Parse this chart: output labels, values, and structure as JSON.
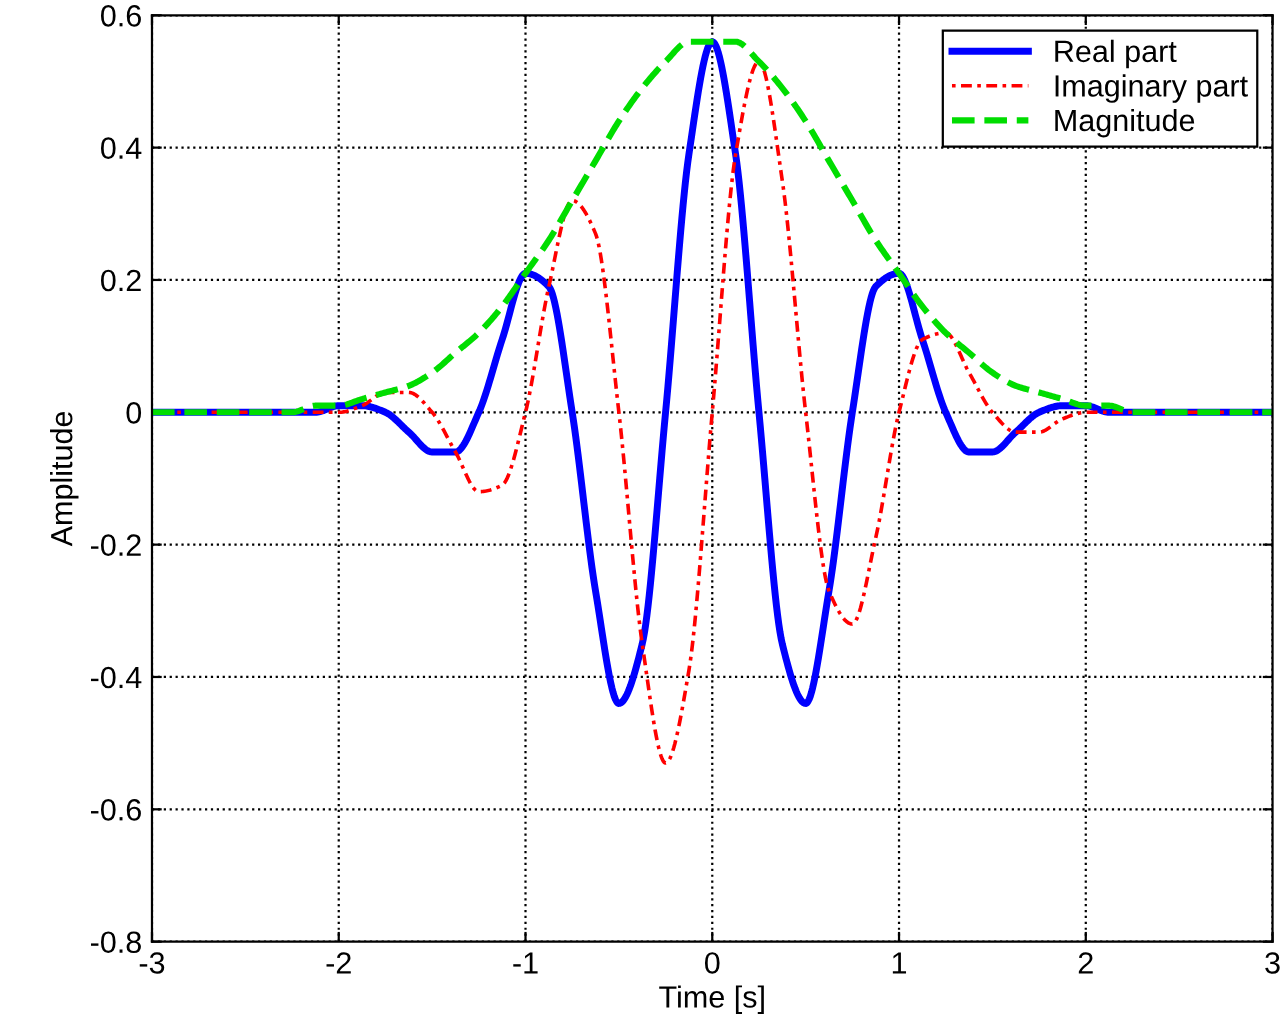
{
  "chart_data": {
    "type": "line",
    "xlabel": "Time [s]",
    "ylabel": "Amplitude",
    "x": [
      -3,
      -2.875,
      -2.75,
      -2.625,
      -2.5,
      -2.375,
      -2.25,
      -2.125,
      -2,
      -1.875,
      -1.75,
      -1.625,
      -1.5,
      -1.375,
      -1.25,
      -1.125,
      -1,
      -0.875,
      -0.75,
      -0.625,
      -0.5,
      -0.375,
      -0.25,
      -0.125,
      0,
      0.125,
      0.25,
      0.375,
      0.5,
      0.625,
      0.75,
      0.875,
      1,
      1.125,
      1.25,
      1.375,
      1.5,
      1.625,
      1.75,
      1.875,
      2,
      2.125,
      2.25,
      2.375,
      2.5,
      2.625,
      2.75,
      2.875,
      3
    ],
    "series": [
      {
        "name": "Real part",
        "color": "#0000ff",
        "line_style": "solid",
        "values": [
          0,
          0,
          0,
          0,
          0,
          0,
          0,
          0,
          0.01,
          0.01,
          0,
          -0.03,
          -0.06,
          -0.06,
          0,
          0.11,
          0.21,
          0.19,
          0,
          -0.27,
          -0.44,
          -0.35,
          0,
          0.39,
          0.56,
          0.39,
          0,
          -0.35,
          -0.44,
          -0.27,
          0,
          0.19,
          0.21,
          0.11,
          0,
          -0.06,
          -0.06,
          -0.03,
          0,
          0.01,
          0.01,
          0,
          0,
          0,
          0,
          0,
          0,
          0,
          0
        ]
      },
      {
        "name": "Imaginary part",
        "color": "#ff0000",
        "line_style": "dotted",
        "values": [
          0,
          0,
          0,
          0,
          0,
          0,
          0,
          0,
          0,
          0.01,
          0.03,
          0.03,
          0,
          -0.06,
          -0.12,
          -0.11,
          0,
          0.19,
          0.32,
          0.27,
          0,
          -0.35,
          -0.53,
          -0.39,
          0,
          0.39,
          0.53,
          0.35,
          0,
          -0.27,
          -0.32,
          -0.19,
          0,
          0.11,
          0.12,
          0.06,
          0,
          -0.03,
          -0.03,
          -0.01,
          0,
          0,
          0,
          0,
          0,
          0,
          0,
          0,
          0
        ]
      },
      {
        "name": "Magnitude",
        "color": "#00dd00",
        "line_style": "dashed",
        "values": [
          0,
          0,
          0,
          0,
          0,
          0,
          0,
          0.01,
          0.01,
          0.02,
          0.03,
          0.04,
          0.06,
          0.09,
          0.12,
          0.16,
          0.21,
          0.26,
          0.32,
          0.38,
          0.44,
          0.49,
          0.53,
          0.56,
          0.56,
          0.56,
          0.53,
          0.49,
          0.44,
          0.38,
          0.32,
          0.26,
          0.21,
          0.16,
          0.12,
          0.09,
          0.06,
          0.04,
          0.03,
          0.02,
          0.01,
          0.01,
          0,
          0,
          0,
          0,
          0,
          0,
          0
        ]
      }
    ],
    "xlim": [
      -3,
      3
    ],
    "ylim": [
      -0.8,
      0.6
    ],
    "xticks": [
      -3,
      -2,
      -1,
      0,
      1,
      2,
      3
    ],
    "yticks": [
      -0.8,
      -0.6,
      -0.4,
      -0.2,
      0,
      0.2,
      0.4,
      0.6
    ],
    "grid": true,
    "legend": "top right"
  }
}
